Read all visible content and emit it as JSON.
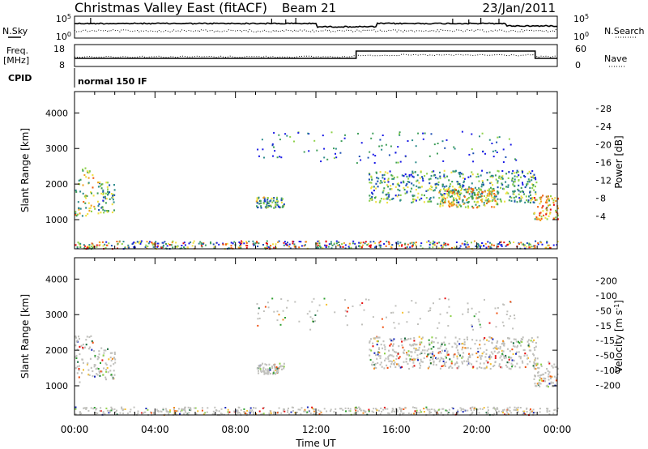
{
  "header": {
    "title": "Christmas Valley East (fitACF)",
    "beam": "Beam 21",
    "date": "23/Jan/2011"
  },
  "noise_panel": {
    "left_label": "N.Sky",
    "right_label": "N.Search",
    "left_ticks": [
      "10^5",
      "10^0"
    ],
    "right_ticks": [
      "10^5",
      "10^0"
    ]
  },
  "freq_panel": {
    "left_label_line1": "Freq.",
    "left_label_line2": "[MHz]",
    "right_label": "Nave",
    "left_ticks": [
      "18",
      "8"
    ],
    "right_ticks": [
      "60",
      "0"
    ]
  },
  "cpid": {
    "label": "CPID",
    "value": "normal 150 IF"
  },
  "x_axis": {
    "label": "Time UT",
    "ticks": [
      "00:00",
      "04:00",
      "08:00",
      "12:00",
      "16:00",
      "20:00",
      "00:00"
    ],
    "range_hours": [
      0,
      24
    ]
  },
  "colors": {
    "axis": "#000000",
    "ground_scatter": "#c0c0bc"
  },
  "chart_data": [
    {
      "type": "heatmap",
      "title": "",
      "xlabel": "",
      "ylabel": "Slant Range [km]",
      "ylim": [
        180,
        4600
      ],
      "xlim": [
        0,
        24
      ],
      "yticks": [
        "1000",
        "2000",
        "3000",
        "4000"
      ],
      "colorbar": {
        "label": "Power [dB]",
        "ticks": [
          "4",
          "8",
          "12",
          "16",
          "20",
          "24",
          "28"
        ],
        "range": [
          0,
          30
        ],
        "colors": [
          "#1a1ae6",
          "#1a4db3",
          "#2e8c8c",
          "#3f9e5a",
          "#8ed14a",
          "#f0e040",
          "#f0a020",
          "#f06010",
          "#e61010"
        ]
      },
      "echo_regions": [
        {
          "t0": 0.0,
          "t1": 0.9,
          "r0": 1100,
          "r1": 2500,
          "level": 0.55
        },
        {
          "t0": 0.9,
          "t1": 2.0,
          "r0": 1200,
          "r1": 2100,
          "level": 0.4
        },
        {
          "t0": 9.0,
          "t1": 10.4,
          "r0": 1350,
          "r1": 1650,
          "level": 0.4
        },
        {
          "t0": 14.6,
          "t1": 23.0,
          "r0": 1500,
          "r1": 2400,
          "level": 0.35
        },
        {
          "t0": 18.0,
          "t1": 21.0,
          "r0": 1350,
          "r1": 1900,
          "level": 0.6
        },
        {
          "t0": 22.8,
          "t1": 24.0,
          "r0": 1000,
          "r1": 1700,
          "level": 0.7
        }
      ]
    },
    {
      "type": "heatmap",
      "title": "",
      "xlabel": "Time UT",
      "ylabel": "Slant Range [km]",
      "ylim": [
        180,
        4600
      ],
      "xlim": [
        0,
        24
      ],
      "yticks": [
        "1000",
        "2000",
        "3000",
        "4000"
      ],
      "colorbar": {
        "label": "Velocity [m s^-1]",
        "ticks": [
          "200",
          "100",
          "50",
          "15",
          "-15",
          "-50",
          "-100",
          "-200"
        ],
        "range": [
          -250,
          250
        ],
        "colors": [
          "#1a2ab8",
          "#1c6e40",
          "#30a030",
          "#8ed14a",
          "#c0c0bc",
          "#f5c030",
          "#f08c20",
          "#f05010",
          "#e61010"
        ]
      },
      "echo_regions": [
        {
          "t0": 0.0,
          "t1": 0.9,
          "r0": 1100,
          "r1": 2500,
          "level": 0.5
        },
        {
          "t0": 0.9,
          "t1": 2.0,
          "r0": 1200,
          "r1": 2100,
          "level": 0.55
        },
        {
          "t0": 9.0,
          "t1": 10.4,
          "r0": 1350,
          "r1": 1650,
          "level": 0.6
        },
        {
          "t0": 14.6,
          "t1": 23.0,
          "r0": 1500,
          "r1": 2400,
          "level": 0.5
        },
        {
          "t0": 22.8,
          "t1": 24.0,
          "r0": 1000,
          "r1": 1700,
          "level": 0.5
        }
      ]
    }
  ]
}
